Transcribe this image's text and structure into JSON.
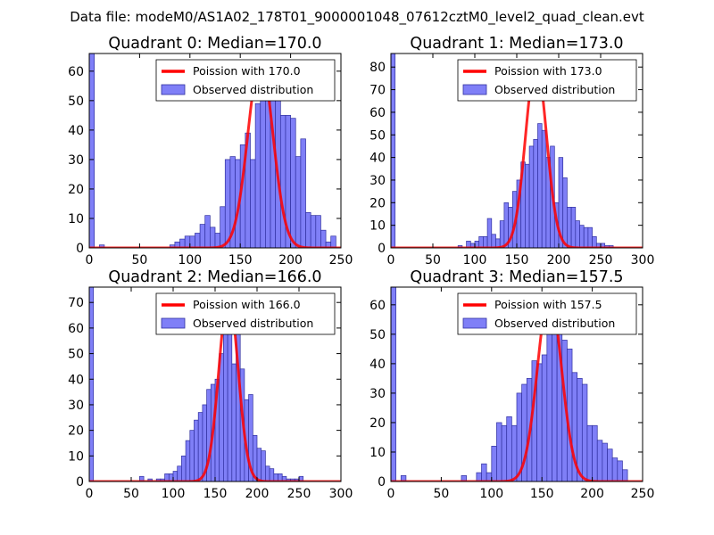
{
  "figure": {
    "suptitle": "Data file: modeM0/AS1A02_178T01_9000001048_07612cztM0_level2_quad_clean.evt"
  },
  "colors": {
    "poisson_line": "#ff0000",
    "bar_fill": "#7f7ff7",
    "bar_edge": "#3030a0",
    "axis": "#000000",
    "background": "#ffffff"
  },
  "chart_data": [
    {
      "type": "bar",
      "title": "Quadrant 0: Median=170.0",
      "xlim": [
        0,
        250
      ],
      "ylim": [
        0,
        66
      ],
      "xticks": [
        0,
        50,
        100,
        150,
        200,
        250
      ],
      "yticks": [
        0,
        10,
        20,
        30,
        40,
        50,
        60
      ],
      "legend": {
        "placement": "top-right",
        "line_label": "Poission with 170.0",
        "bar_label": "Observed distribution"
      },
      "poisson": {
        "mean": 170.0,
        "peak": 63.5,
        "sigma": 12.5
      },
      "bin_width": 5,
      "bins": [
        [
          0,
          66
        ],
        [
          10,
          1
        ],
        [
          60,
          0
        ],
        [
          80,
          1
        ],
        [
          85,
          2
        ],
        [
          90,
          3
        ],
        [
          95,
          4
        ],
        [
          100,
          4
        ],
        [
          105,
          5
        ],
        [
          110,
          8
        ],
        [
          115,
          11
        ],
        [
          120,
          7
        ],
        [
          125,
          5
        ],
        [
          130,
          14
        ],
        [
          135,
          30
        ],
        [
          140,
          31
        ],
        [
          145,
          30
        ],
        [
          150,
          35
        ],
        [
          155,
          39
        ],
        [
          160,
          30
        ],
        [
          165,
          49
        ],
        [
          170,
          55
        ],
        [
          175,
          58
        ],
        [
          180,
          53
        ],
        [
          185,
          51
        ],
        [
          190,
          45
        ],
        [
          195,
          45
        ],
        [
          200,
          44
        ],
        [
          205,
          31
        ],
        [
          210,
          37
        ],
        [
          215,
          12
        ],
        [
          220,
          11
        ],
        [
          225,
          11
        ],
        [
          230,
          6
        ],
        [
          235,
          2
        ],
        [
          240,
          4
        ]
      ]
    },
    {
      "type": "bar",
      "title": "Quadrant 1: Median=173.0",
      "xlim": [
        0,
        300
      ],
      "ylim": [
        0,
        86
      ],
      "xticks": [
        0,
        50,
        100,
        150,
        200,
        250,
        300
      ],
      "yticks": [
        0,
        10,
        20,
        30,
        40,
        50,
        60,
        70,
        80
      ],
      "legend": {
        "placement": "top-right",
        "line_label": "Poission with 173.0",
        "bar_label": "Observed distribution"
      },
      "poisson": {
        "mean": 173.0,
        "peak": 82.0,
        "sigma": 12.5
      },
      "bin_width": 5,
      "bins": [
        [
          0,
          86
        ],
        [
          20,
          0
        ],
        [
          80,
          1
        ],
        [
          90,
          3
        ],
        [
          95,
          2
        ],
        [
          100,
          3
        ],
        [
          105,
          5
        ],
        [
          110,
          5
        ],
        [
          115,
          13
        ],
        [
          120,
          6
        ],
        [
          125,
          4
        ],
        [
          130,
          12
        ],
        [
          135,
          20
        ],
        [
          140,
          18
        ],
        [
          145,
          25
        ],
        [
          150,
          30
        ],
        [
          155,
          38
        ],
        [
          160,
          37
        ],
        [
          165,
          45
        ],
        [
          170,
          48
        ],
        [
          175,
          55
        ],
        [
          180,
          52
        ],
        [
          185,
          40
        ],
        [
          190,
          45
        ],
        [
          195,
          20
        ],
        [
          200,
          40
        ],
        [
          205,
          31
        ],
        [
          210,
          18
        ],
        [
          215,
          18
        ],
        [
          220,
          12
        ],
        [
          225,
          10
        ],
        [
          230,
          9
        ],
        [
          235,
          9
        ],
        [
          240,
          5
        ],
        [
          245,
          2
        ],
        [
          250,
          2
        ],
        [
          255,
          1
        ],
        [
          260,
          1
        ]
      ]
    },
    {
      "type": "bar",
      "title": "Quadrant 2: Median=166.0",
      "xlim": [
        0,
        300
      ],
      "ylim": [
        0,
        76
      ],
      "xticks": [
        0,
        50,
        100,
        150,
        200,
        250,
        300
      ],
      "yticks": [
        0,
        10,
        20,
        30,
        40,
        50,
        60,
        70
      ],
      "legend": {
        "placement": "top-right",
        "line_label": "Poission with 166.0",
        "bar_label": "Observed distribution"
      },
      "poisson": {
        "mean": 166.0,
        "peak": 72.5,
        "sigma": 11.5
      },
      "bin_width": 5,
      "bins": [
        [
          0,
          76
        ],
        [
          60,
          2
        ],
        [
          70,
          1
        ],
        [
          80,
          1
        ],
        [
          85,
          1
        ],
        [
          90,
          3
        ],
        [
          95,
          3
        ],
        [
          100,
          4
        ],
        [
          105,
          6
        ],
        [
          110,
          10
        ],
        [
          115,
          16
        ],
        [
          120,
          20
        ],
        [
          125,
          24
        ],
        [
          130,
          27
        ],
        [
          135,
          30
        ],
        [
          140,
          36
        ],
        [
          145,
          38
        ],
        [
          150,
          40
        ],
        [
          155,
          50
        ],
        [
          160,
          66
        ],
        [
          165,
          60
        ],
        [
          170,
          46
        ],
        [
          175,
          58
        ],
        [
          180,
          44
        ],
        [
          185,
          32
        ],
        [
          190,
          34
        ],
        [
          195,
          18
        ],
        [
          200,
          13
        ],
        [
          205,
          12
        ],
        [
          210,
          6
        ],
        [
          215,
          5
        ],
        [
          220,
          3
        ],
        [
          225,
          3
        ],
        [
          230,
          2
        ],
        [
          235,
          1
        ],
        [
          240,
          1
        ],
        [
          245,
          1
        ],
        [
          250,
          2
        ]
      ]
    },
    {
      "type": "bar",
      "title": "Quadrant 3: Median=157.5",
      "xlim": [
        0,
        250
      ],
      "ylim": [
        0,
        66
      ],
      "xticks": [
        0,
        50,
        100,
        150,
        200,
        250
      ],
      "yticks": [
        0,
        10,
        20,
        30,
        40,
        50,
        60
      ],
      "legend": {
        "placement": "top-right",
        "line_label": "Poission with 157.5",
        "bar_label": "Observed distribution"
      },
      "poisson": {
        "mean": 157.5,
        "peak": 63.5,
        "sigma": 12.0
      },
      "bin_width": 5,
      "bins": [
        [
          0,
          66
        ],
        [
          10,
          2
        ],
        [
          70,
          2
        ],
        [
          85,
          3
        ],
        [
          90,
          6
        ],
        [
          95,
          3
        ],
        [
          100,
          12
        ],
        [
          105,
          20
        ],
        [
          110,
          19
        ],
        [
          115,
          22
        ],
        [
          120,
          19
        ],
        [
          125,
          30
        ],
        [
          130,
          33
        ],
        [
          135,
          35
        ],
        [
          140,
          41
        ],
        [
          145,
          40
        ],
        [
          150,
          43
        ],
        [
          155,
          52
        ],
        [
          160,
          52
        ],
        [
          165,
          57
        ],
        [
          170,
          48
        ],
        [
          175,
          45
        ],
        [
          180,
          37
        ],
        [
          185,
          35
        ],
        [
          190,
          33
        ],
        [
          195,
          19
        ],
        [
          200,
          19
        ],
        [
          205,
          14
        ],
        [
          210,
          13
        ],
        [
          215,
          11
        ],
        [
          220,
          8
        ],
        [
          225,
          7
        ],
        [
          230,
          4
        ]
      ]
    }
  ]
}
